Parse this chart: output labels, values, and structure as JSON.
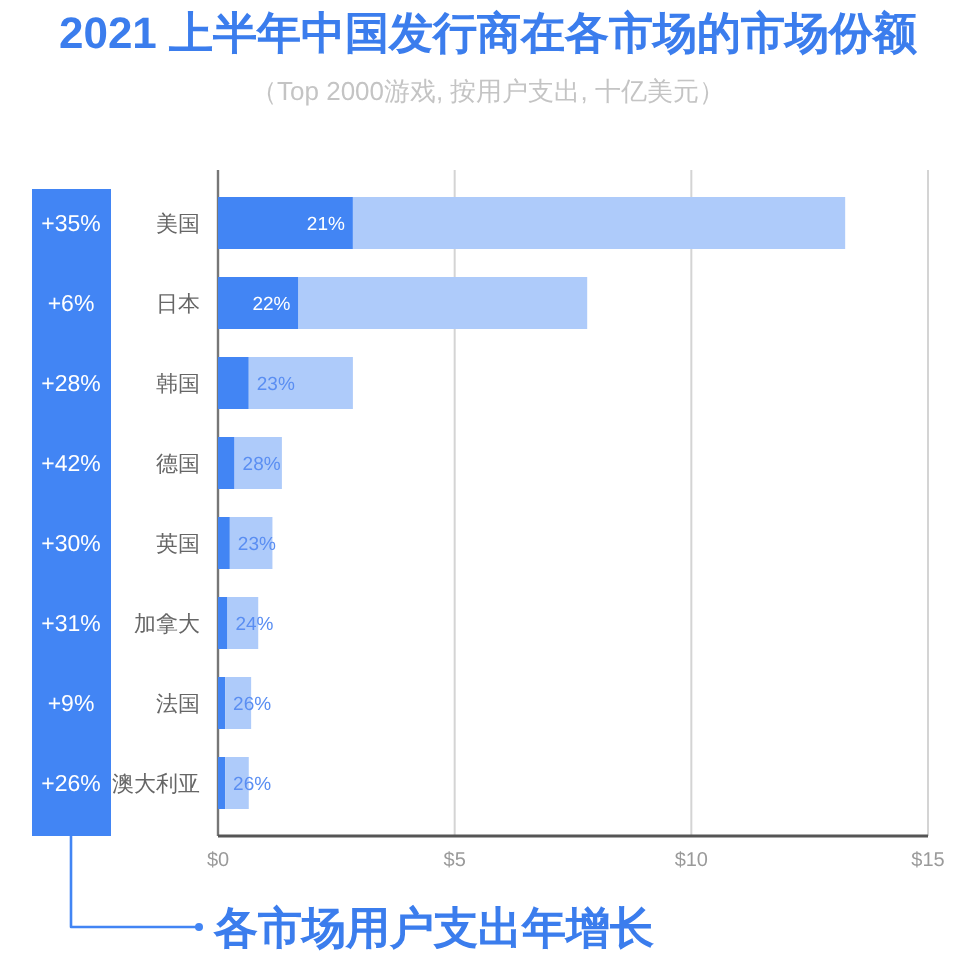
{
  "chart_data": [
    {
      "type": "bar",
      "title": "2021 上半年中国发行商在各市场的市场份额",
      "subtitle": "（Top 2000游戏, 按用户支出, 十亿美元）",
      "orientation": "horizontal",
      "stacked": true,
      "categories": [
        "美国",
        "日本",
        "韩国",
        "德国",
        "英国",
        "加拿大",
        "法国",
        "澳大利亚"
      ],
      "series": [
        {
          "color": "#4285f4",
          "values": [
            2.85,
            1.7,
            0.65,
            0.35,
            0.25,
            0.2,
            0.15,
            0.15
          ]
        },
        {
          "color": "#aecbfa",
          "values": [
            10.4,
            6.1,
            2.2,
            1.0,
            0.9,
            0.65,
            0.55,
            0.5
          ]
        }
      ],
      "annotations": [
        {
          "text": "21%",
          "x": 2.85,
          "y": "美国"
        },
        {
          "text": "22%",
          "x": 1.7,
          "y": "日本"
        },
        {
          "text": "23%",
          "x": 0.65,
          "y": "韩国"
        },
        {
          "text": "28%",
          "x": 0.35,
          "y": "德国"
        },
        {
          "text": "23%",
          "x": 0.25,
          "y": "英国"
        },
        {
          "text": "24%",
          "x": 0.2,
          "y": "加拿大"
        },
        {
          "text": "26%",
          "x": 0.15,
          "y": "法国"
        },
        {
          "text": "26%",
          "x": 0.15,
          "y": "澳大利亚"
        }
      ],
      "xlim": [
        0,
        15
      ],
      "xticks": [
        {
          "value": 0,
          "label": "$0"
        },
        {
          "value": 5,
          "label": "$5"
        },
        {
          "value": 10,
          "label": "$10"
        },
        {
          "value": 15,
          "label": "$15"
        }
      ],
      "grid": "x"
    },
    {
      "type": "other",
      "title": "各市场用户支出年增长",
      "annotations": [
        "+35%",
        "+6%",
        "+28%",
        "+42%",
        "+30%",
        "+31%",
        "+9%",
        "+26%"
      ]
    }
  ]
}
